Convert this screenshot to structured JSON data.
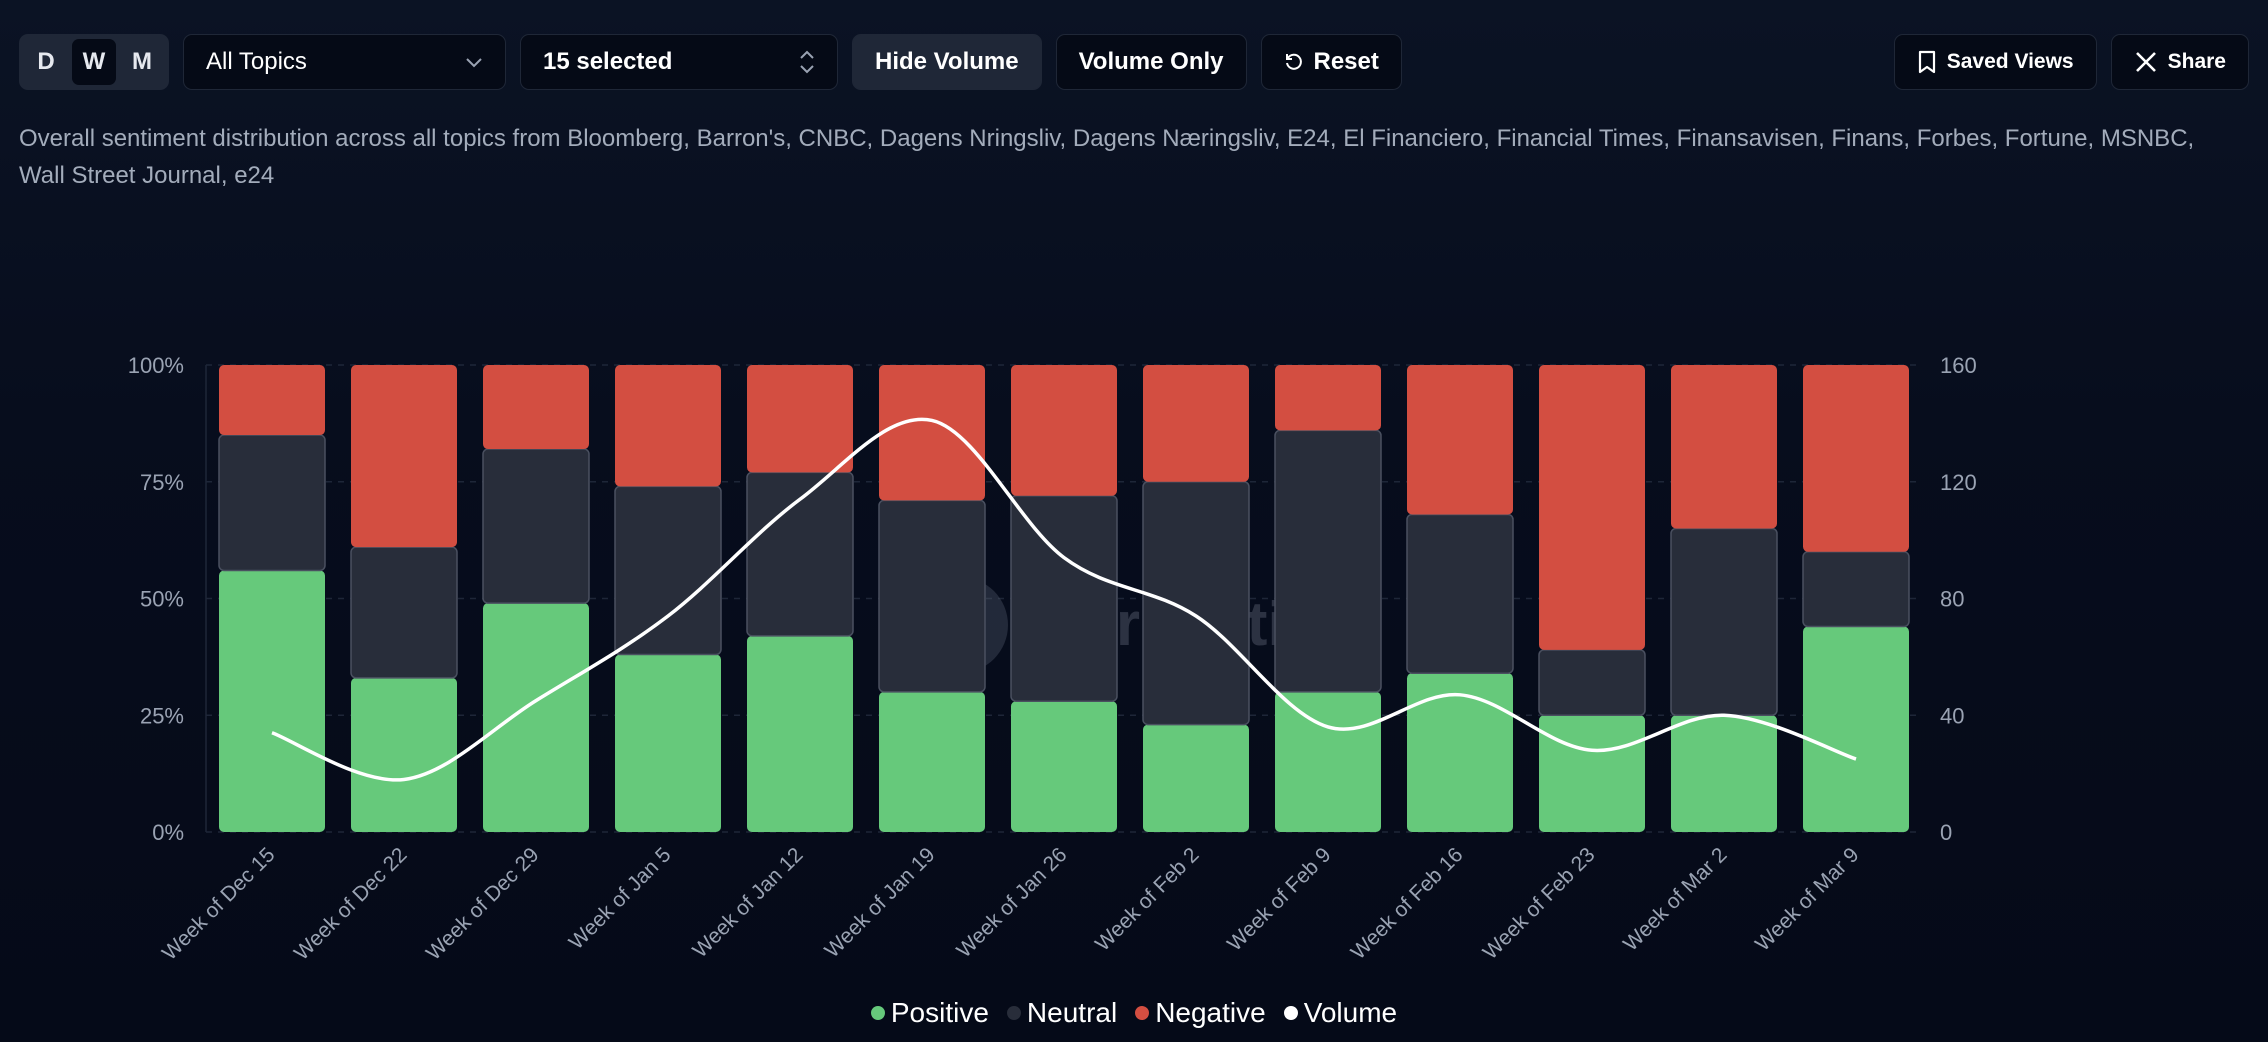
{
  "toolbar": {
    "granularity": [
      "D",
      "W",
      "M"
    ],
    "granularity_selected": "W",
    "topic_select": "All Topics",
    "source_select": "15 selected",
    "hide_volume": "Hide Volume",
    "volume_only": "Volume Only",
    "reset": "Reset",
    "saved_views": "Saved Views",
    "share": "Share"
  },
  "description": "Overall sentiment distribution across all topics from Bloomberg, Barron's, CNBC, Dagens Nringsliv, Dagens Næringsliv, E24, El Financiero, Financial Times, Finansavisen, Finans, Forbes, Fortune, MSNBC, Wall Street Journal, e24",
  "watermark": "Perception",
  "colors": {
    "positive": "#66c97b",
    "neutral": "#282d3a",
    "negative": "#d34e41",
    "volume": "#ffffff"
  },
  "chart_data": {
    "type": "bar",
    "stacked": true,
    "categories": [
      "Week of Dec 15",
      "Week of Dec 22",
      "Week of Dec 29",
      "Week of Jan 5",
      "Week of Jan 12",
      "Week of Jan 19",
      "Week of Jan 26",
      "Week of Feb 2",
      "Week of Feb 9",
      "Week of Feb 16",
      "Week of Feb 23",
      "Week of Mar 2",
      "Week of Mar 9"
    ],
    "series": [
      {
        "name": "Positive",
        "values": [
          56,
          33,
          49,
          38,
          42,
          30,
          28,
          23,
          30,
          34,
          25,
          25,
          44
        ]
      },
      {
        "name": "Neutral",
        "values": [
          29,
          28,
          33,
          36,
          35,
          41,
          44,
          52,
          56,
          34,
          14,
          40,
          16
        ]
      },
      {
        "name": "Negative",
        "values": [
          15,
          39,
          18,
          26,
          23,
          29,
          28,
          25,
          14,
          32,
          61,
          35,
          40
        ]
      },
      {
        "name": "Volume",
        "type": "line",
        "axis": "right",
        "values": [
          34,
          18,
          45,
          74,
          114,
          141,
          94,
          74,
          36,
          47,
          28,
          40,
          25
        ]
      }
    ],
    "y_left": {
      "ticks": [
        "0%",
        "25%",
        "50%",
        "75%",
        "100%"
      ],
      "range": [
        0,
        100
      ]
    },
    "y_right": {
      "ticks": [
        "0",
        "40",
        "80",
        "120",
        "160"
      ],
      "range": [
        0,
        160
      ]
    },
    "grid": true,
    "legend_position": "bottom"
  }
}
